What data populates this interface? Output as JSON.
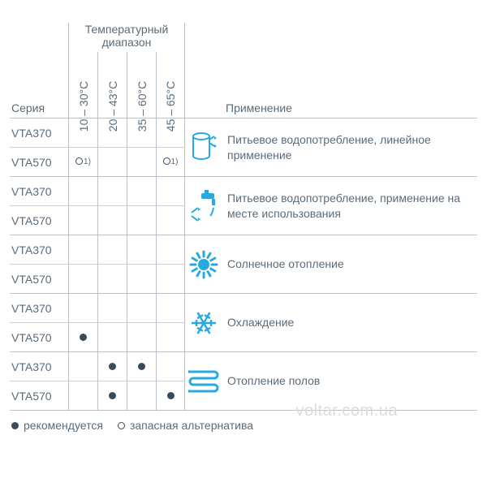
{
  "colors": {
    "text": "#5a6b7a",
    "border": "#b8c2cc",
    "row_border": "#c8d0d8",
    "icon": "#29a9e0",
    "dot": "#3a4a5a",
    "background": "#ffffff",
    "watermark": "#d9dde1"
  },
  "typography": {
    "base_fontsize": 14,
    "font_family": "Arial"
  },
  "headers": {
    "temp_range": "Температурный диапазон",
    "series": "Серия",
    "application": "Применение",
    "columns": [
      "10 – 30°C",
      "20 – 43°C",
      "35 – 60°C",
      "45 – 65°C"
    ]
  },
  "series_labels": [
    "VTA370",
    "VTA570"
  ],
  "marks": {
    "dot": "●",
    "circle": "○",
    "circle_sup": "1)"
  },
  "groups": [
    {
      "icon": "tank",
      "application": "Питьевое водопотребление, линейное применение",
      "rows": [
        {
          "series": "VTA370",
          "cells": [
            "",
            "",
            "",
            ""
          ]
        },
        {
          "series": "VTA570",
          "cells": [
            "circle1",
            "",
            "",
            "circle1"
          ]
        }
      ]
    },
    {
      "icon": "tap",
      "application": "Питьевое водопотребление, применение на месте использования",
      "rows": [
        {
          "series": "VTA370",
          "cells": [
            "",
            "",
            "",
            ""
          ]
        },
        {
          "series": "VTA570",
          "cells": [
            "",
            "",
            "",
            ""
          ]
        }
      ]
    },
    {
      "icon": "sun",
      "application": "Солнечное отопление",
      "rows": [
        {
          "series": "VTA370",
          "cells": [
            "",
            "",
            "",
            ""
          ]
        },
        {
          "series": "VTA570",
          "cells": [
            "",
            "",
            "",
            ""
          ]
        }
      ]
    },
    {
      "icon": "snow",
      "application": "Охлаждение",
      "rows": [
        {
          "series": "VTA370",
          "cells": [
            "",
            "",
            "",
            ""
          ]
        },
        {
          "series": "VTA570",
          "cells": [
            "dot",
            "",
            "",
            ""
          ]
        }
      ]
    },
    {
      "icon": "floor",
      "application": "Отопление полов",
      "rows": [
        {
          "series": "VTA370",
          "cells": [
            "",
            "dot",
            "dot",
            ""
          ]
        },
        {
          "series": "VTA570",
          "cells": [
            "",
            "dot",
            "",
            "dot"
          ]
        }
      ]
    }
  ],
  "legend": {
    "recommended": "рекомендуется",
    "alternative": "запасная альтернатива"
  },
  "watermark": "voltar.com.ua"
}
